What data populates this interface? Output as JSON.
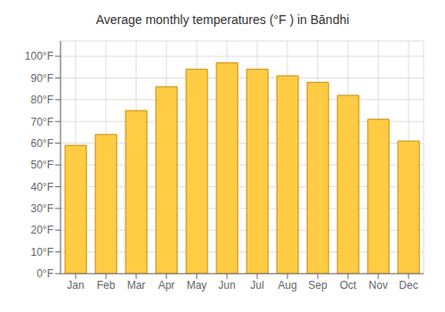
{
  "chart_data": {
    "type": "bar",
    "title": "Average monthly temperatures (°F ) in Bāndhi",
    "categories": [
      "Jan",
      "Feb",
      "Mar",
      "Apr",
      "May",
      "Jun",
      "Jul",
      "Aug",
      "Sep",
      "Oct",
      "Nov",
      "Dec"
    ],
    "values": [
      59,
      64,
      75,
      86,
      94,
      97,
      94,
      91,
      88,
      82,
      71,
      61
    ],
    "color": "#FFCC44",
    "ylim": [
      0,
      107
    ],
    "yticks": [
      {
        "value": 0,
        "label": "0°F"
      },
      {
        "value": 10,
        "label": "10°F"
      },
      {
        "value": 20,
        "label": "20°F"
      },
      {
        "value": 30,
        "label": "30°F"
      },
      {
        "value": 40,
        "label": "40°F"
      },
      {
        "value": 50,
        "label": "50°F"
      },
      {
        "value": 60,
        "label": "60°F"
      },
      {
        "value": 70,
        "label": "70°F"
      },
      {
        "value": 80,
        "label": "80°F"
      },
      {
        "value": 90,
        "label": "90°F"
      },
      {
        "value": 100,
        "label": "100°F"
      }
    ],
    "grid": true
  }
}
